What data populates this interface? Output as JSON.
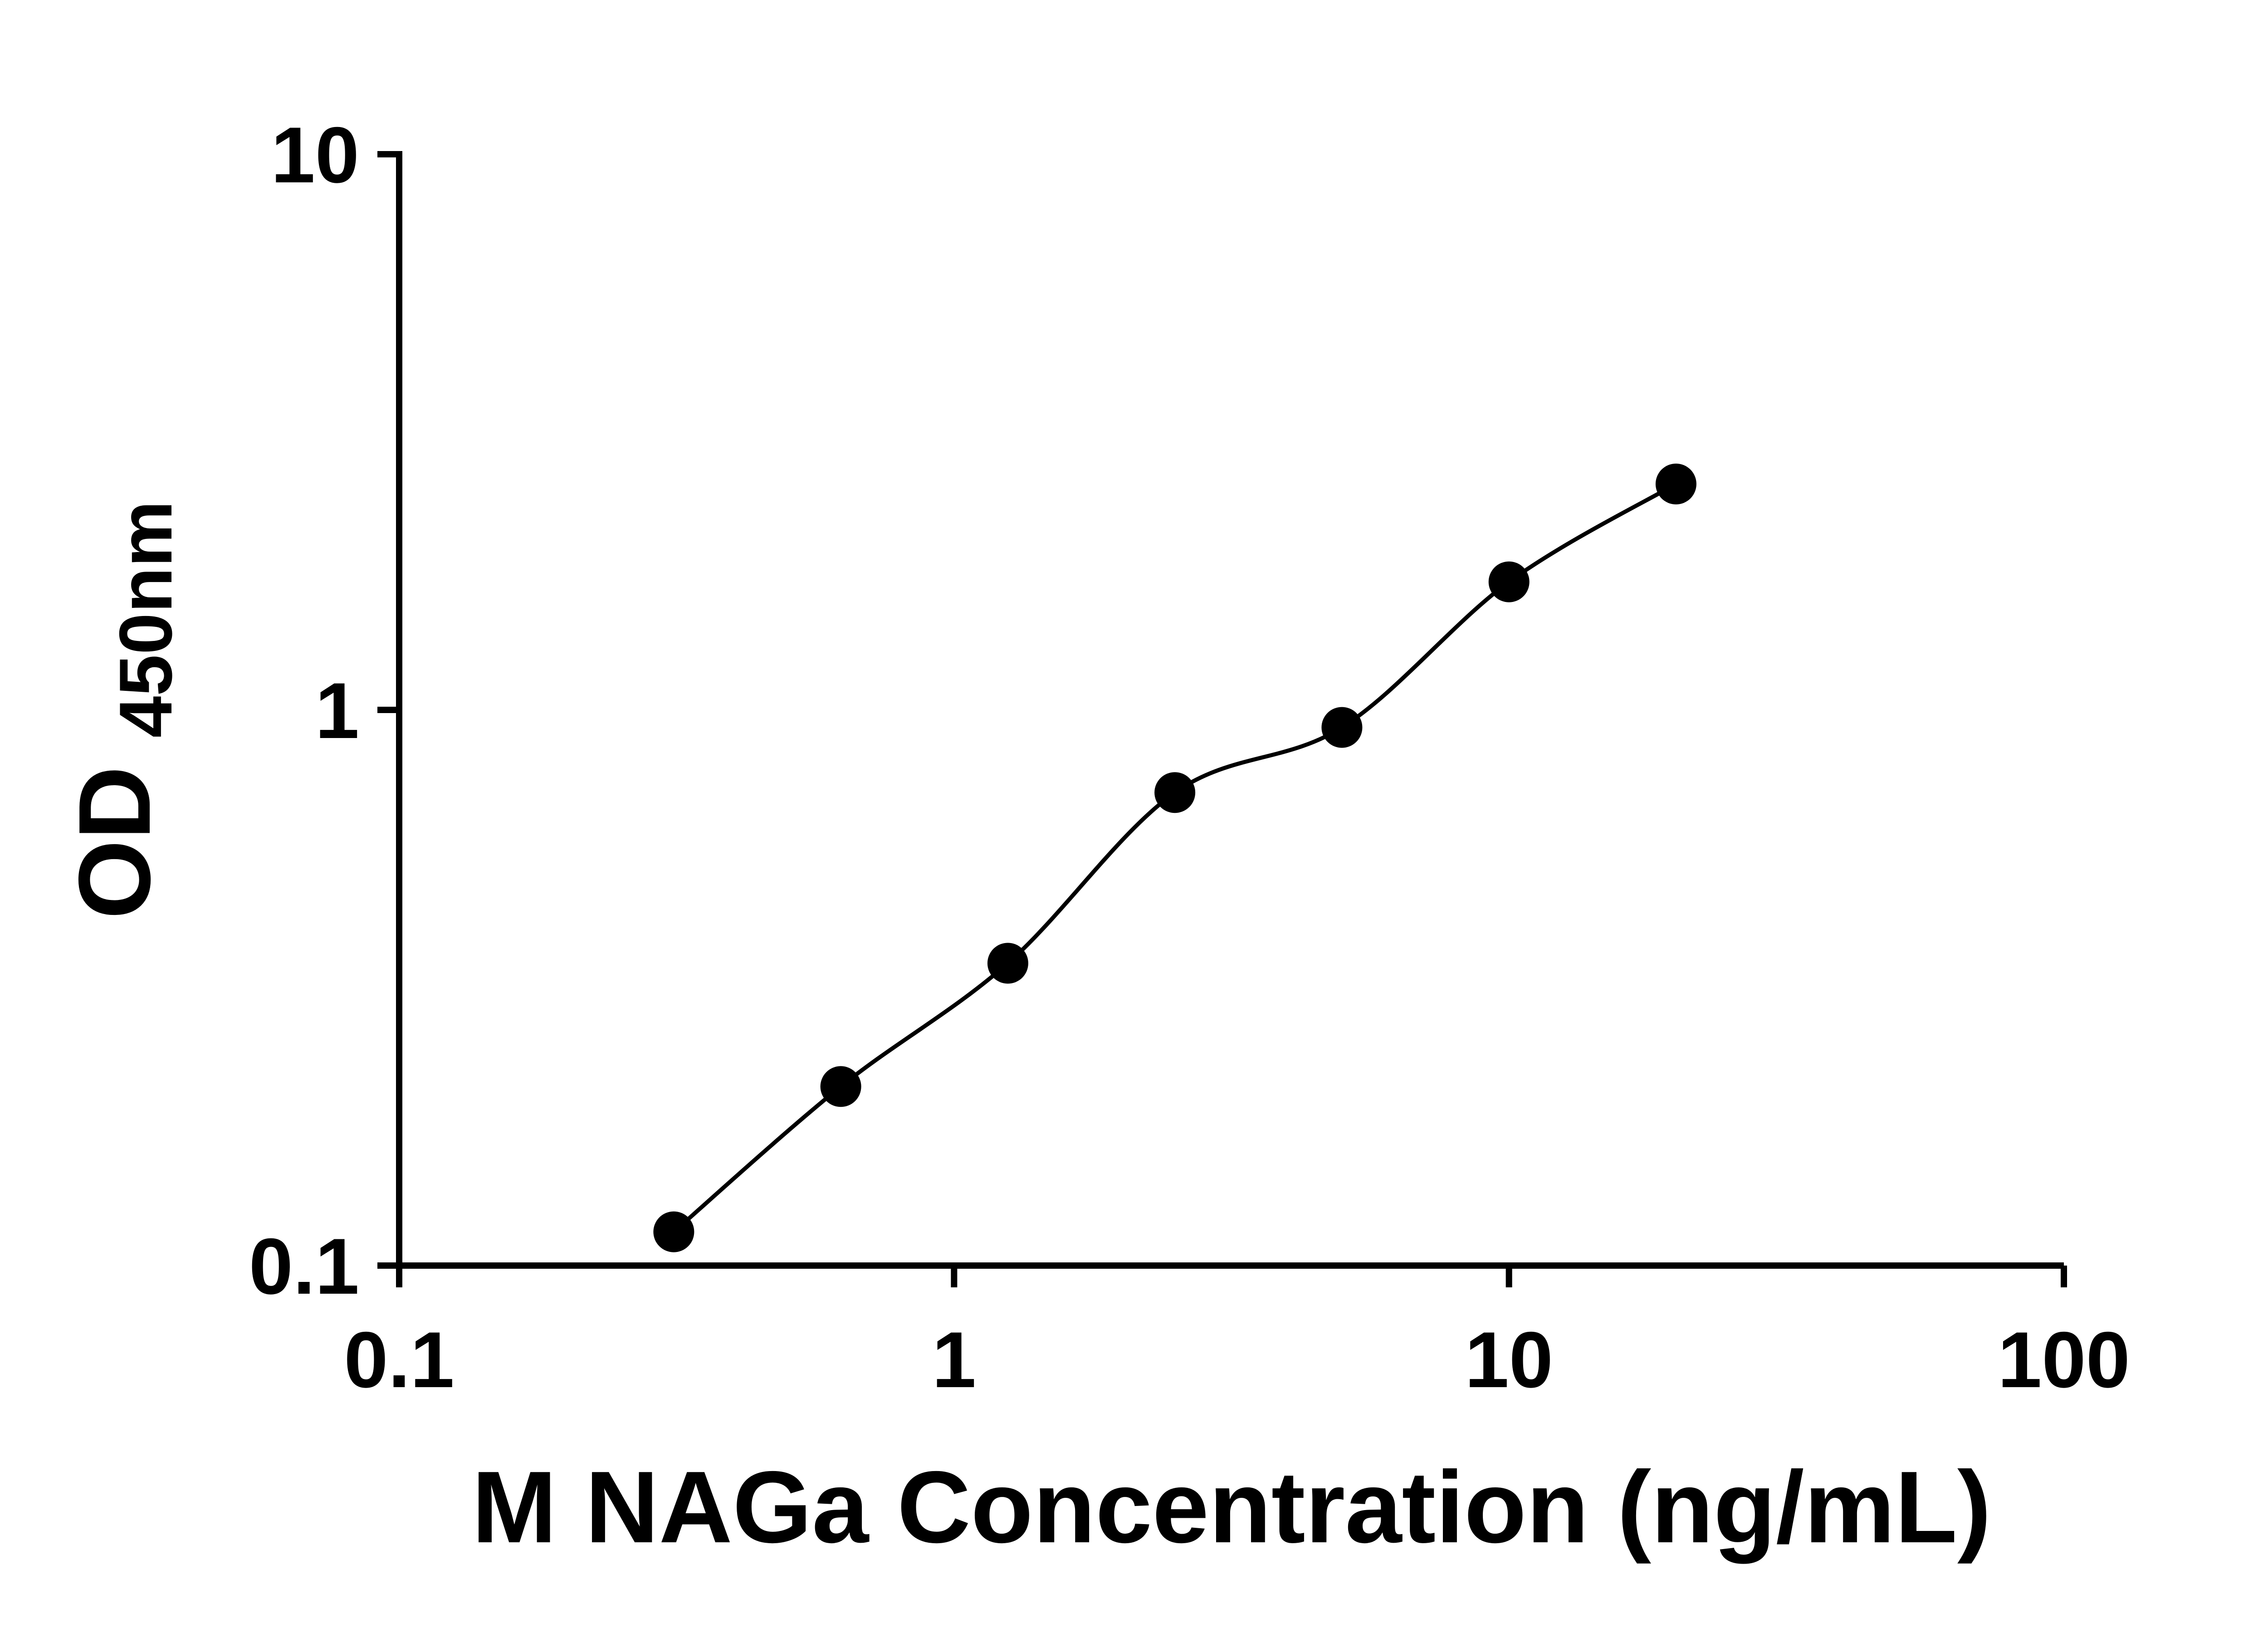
{
  "figure": {
    "background": "#ffffff",
    "ink_color": "#000000"
  },
  "chart_data": {
    "type": "scatter",
    "subtype": "ELISA standard curve with fitted line",
    "title": "",
    "xlabel": "M NAGa Concentration (ng/mL)",
    "ylabel": "OD450nm",
    "ylabel_main": "OD",
    "ylabel_sub": "450nm",
    "x_scale": "log10",
    "y_scale": "log10",
    "xlim": [
      0.1,
      100
    ],
    "ylim": [
      0.1,
      10
    ],
    "x_ticks": [
      0.1,
      1,
      10,
      100
    ],
    "x_tick_labels": [
      "0.1",
      "1",
      "10",
      "100"
    ],
    "y_ticks": [
      0.1,
      1,
      10
    ],
    "y_tick_labels": [
      "0.1",
      "1",
      "10"
    ],
    "grid": false,
    "legend": "none",
    "marker_color": "#000000",
    "line_color": "#000000",
    "series": [
      {
        "name": "standard-curve-points",
        "marker": "filled-circle",
        "x": [
          0.3125,
          0.625,
          1.25,
          2.5,
          5,
          10,
          20
        ],
        "y": [
          0.115,
          0.21,
          0.35,
          0.71,
          0.93,
          1.7,
          2.55
        ]
      }
    ],
    "fit_line_through_points": true
  }
}
